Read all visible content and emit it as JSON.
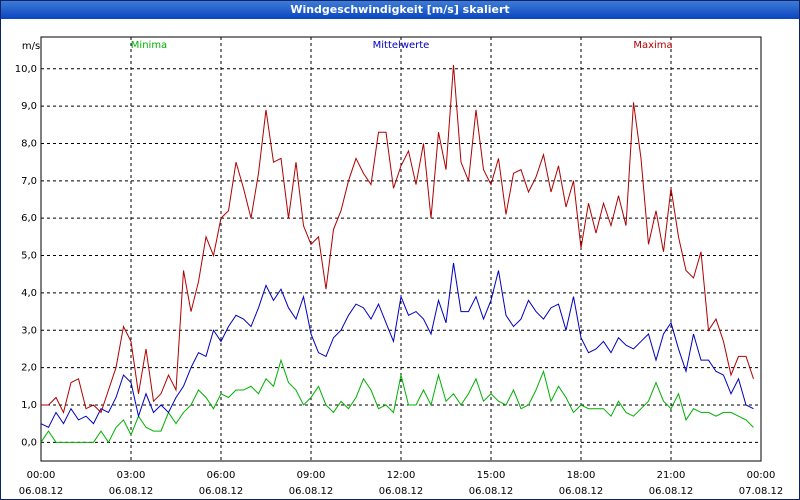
{
  "chart_data": {
    "type": "line",
    "title": "Windgeschwindigkeit [m/s] skaliert",
    "y_label": "m/s",
    "x": [
      0,
      0.25,
      0.5,
      0.75,
      1,
      1.25,
      1.5,
      1.75,
      2,
      2.25,
      2.5,
      2.75,
      3,
      3.25,
      3.5,
      3.75,
      4,
      4.25,
      4.5,
      4.75,
      5,
      5.25,
      5.5,
      5.75,
      6,
      6.25,
      6.5,
      6.75,
      7,
      7.25,
      7.5,
      7.75,
      8,
      8.25,
      8.5,
      8.75,
      9,
      9.25,
      9.5,
      9.75,
      10,
      10.25,
      10.5,
      10.75,
      11,
      11.25,
      11.5,
      11.75,
      12,
      12.25,
      12.5,
      12.75,
      13,
      13.25,
      13.5,
      13.75,
      14,
      14.25,
      14.5,
      14.75,
      15,
      15.25,
      15.5,
      15.75,
      16,
      16.25,
      16.5,
      16.75,
      17,
      17.25,
      17.5,
      17.75,
      18,
      18.25,
      18.5,
      18.75,
      19,
      19.25,
      19.5,
      19.75,
      20,
      20.25,
      20.5,
      20.75,
      21,
      21.25,
      21.5,
      21.75,
      22,
      22.25,
      22.5,
      22.75,
      23,
      23.25,
      23.5,
      23.75
    ],
    "series": [
      {
        "name": "Minima",
        "color": "#00b000",
        "values": [
          0.0,
          0.3,
          0.0,
          0.0,
          0.0,
          0.0,
          0.0,
          0.0,
          0.3,
          0.0,
          0.4,
          0.6,
          0.2,
          0.7,
          0.4,
          0.3,
          0.3,
          0.8,
          0.5,
          0.8,
          1.0,
          1.4,
          1.2,
          0.9,
          1.3,
          1.2,
          1.4,
          1.4,
          1.5,
          1.3,
          1.7,
          1.5,
          2.2,
          1.6,
          1.4,
          1.0,
          1.2,
          1.5,
          1.0,
          0.8,
          1.1,
          0.9,
          1.2,
          1.7,
          1.4,
          0.9,
          1.0,
          0.8,
          1.8,
          1.0,
          1.0,
          1.4,
          1.0,
          1.8,
          1.1,
          1.3,
          1.0,
          1.3,
          1.7,
          1.1,
          1.3,
          1.1,
          1.0,
          1.4,
          0.9,
          1.0,
          1.4,
          1.9,
          1.1,
          1.5,
          1.2,
          0.8,
          1.0,
          0.9,
          0.9,
          0.9,
          0.7,
          1.1,
          0.8,
          0.7,
          0.9,
          1.1,
          1.6,
          1.1,
          0.9,
          1.3,
          0.6,
          0.9,
          0.8,
          0.8,
          0.7,
          0.8,
          0.8,
          0.7,
          0.6,
          0.4
        ]
      },
      {
        "name": "Mittelwerte",
        "color": "#0000c0",
        "values": [
          0.5,
          0.4,
          0.8,
          0.5,
          0.9,
          0.6,
          0.7,
          0.5,
          0.9,
          0.8,
          1.2,
          1.8,
          1.6,
          0.7,
          1.3,
          0.8,
          1.0,
          0.8,
          1.2,
          1.5,
          2.0,
          2.4,
          2.3,
          3.0,
          2.7,
          3.1,
          3.4,
          3.3,
          3.1,
          3.6,
          4.2,
          3.8,
          4.1,
          3.6,
          3.3,
          3.9,
          2.9,
          2.4,
          2.3,
          2.8,
          3.0,
          3.4,
          3.7,
          3.6,
          3.3,
          3.7,
          3.2,
          2.7,
          3.9,
          3.4,
          3.5,
          3.3,
          2.9,
          3.8,
          3.2,
          4.8,
          3.5,
          3.5,
          3.9,
          3.3,
          3.8,
          4.6,
          3.4,
          3.1,
          3.3,
          3.8,
          3.5,
          3.3,
          3.6,
          3.7,
          3.0,
          3.9,
          2.8,
          2.4,
          2.5,
          2.7,
          2.4,
          2.8,
          2.6,
          2.5,
          2.7,
          2.9,
          2.2,
          2.9,
          3.2,
          2.5,
          1.9,
          2.9,
          2.2,
          2.2,
          1.9,
          1.8,
          1.3,
          1.7,
          1.0,
          0.9
        ]
      },
      {
        "name": "Maxima",
        "color": "#b00000",
        "values": [
          1.0,
          1.0,
          1.2,
          0.8,
          1.6,
          1.7,
          0.9,
          1.0,
          0.8,
          1.4,
          2.0,
          3.1,
          2.7,
          1.3,
          2.5,
          1.1,
          1.3,
          1.8,
          1.4,
          4.6,
          3.5,
          4.3,
          5.5,
          5.0,
          6.0,
          6.2,
          7.5,
          6.8,
          6.0,
          7.2,
          8.9,
          7.5,
          7.6,
          6.0,
          7.5,
          5.8,
          5.3,
          5.5,
          4.1,
          5.7,
          6.2,
          7.0,
          7.6,
          7.2,
          6.9,
          8.3,
          8.3,
          6.8,
          7.4,
          7.8,
          6.9,
          8.0,
          6.0,
          8.3,
          7.3,
          10.1,
          7.5,
          7.0,
          8.9,
          7.3,
          6.9,
          7.6,
          6.1,
          7.2,
          7.3,
          6.7,
          7.1,
          7.7,
          6.7,
          7.4,
          6.3,
          7.0,
          5.2,
          6.4,
          5.6,
          6.4,
          5.8,
          6.6,
          5.8,
          9.1,
          7.6,
          5.3,
          6.2,
          5.1,
          6.8,
          5.5,
          4.6,
          4.4,
          5.1,
          3.0,
          3.3,
          2.7,
          1.8,
          2.3,
          2.3,
          1.7
        ]
      }
    ],
    "xlim": [
      0,
      24
    ],
    "xticks": [
      {
        "value": 0,
        "label": "00:00 06.08.12"
      },
      {
        "value": 3,
        "label": "03:00 06.08.12"
      },
      {
        "value": 6,
        "label": "06:00 06.08.12"
      },
      {
        "value": 9,
        "label": "09:00 06.08.12"
      },
      {
        "value": 12,
        "label": "12:00 06.08.12"
      },
      {
        "value": 15,
        "label": "15:00 06.08.12"
      },
      {
        "value": 18,
        "label": "18:00 06.08.12"
      },
      {
        "value": 21,
        "label": "21:00 06.08.12"
      },
      {
        "value": 24,
        "label": "00:00 07.08.12"
      }
    ],
    "ylim": [
      -0.5,
      10.85
    ],
    "yticks": [
      {
        "value": 0,
        "label": "0,0"
      },
      {
        "value": 1,
        "label": "1,0"
      },
      {
        "value": 2,
        "label": "2,0"
      },
      {
        "value": 3,
        "label": "3,0"
      },
      {
        "value": 4,
        "label": "4,0"
      },
      {
        "value": 5,
        "label": "5,0"
      },
      {
        "value": 6,
        "label": "6,0"
      },
      {
        "value": 7,
        "label": "7,0"
      },
      {
        "value": 8,
        "label": "8,0"
      },
      {
        "value": 9,
        "label": "9,0"
      },
      {
        "value": 10,
        "label": "10,0"
      }
    ],
    "grid": true
  }
}
